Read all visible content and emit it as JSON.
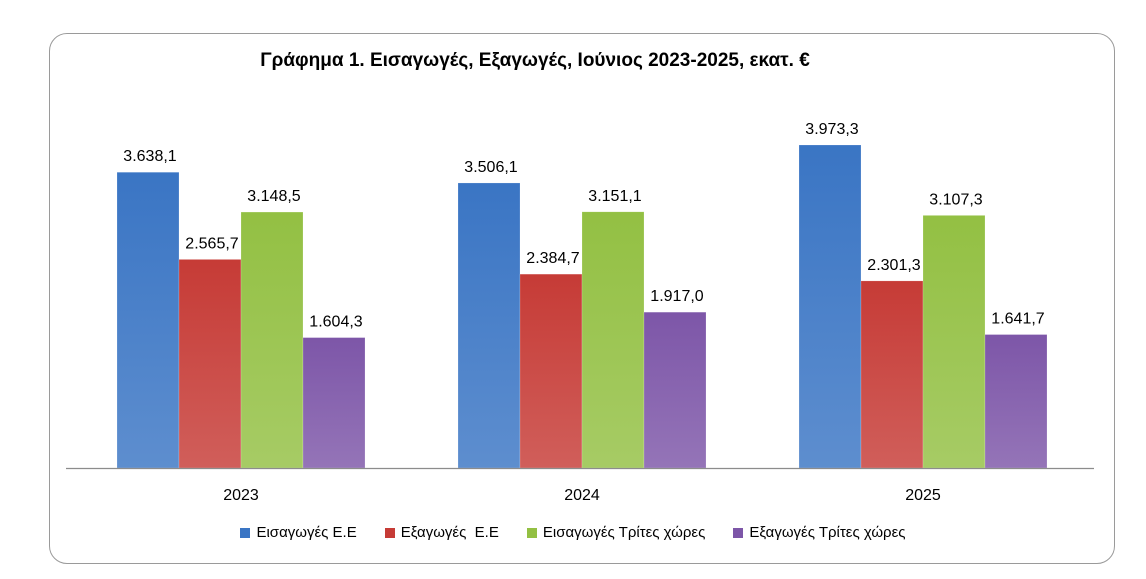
{
  "chart_data": {
    "type": "bar",
    "title": "Γράφημα 1. Εισαγωγές, Εξαγωγές, Ιούνιος 2023-2025, εκατ. €",
    "categories": [
      "2023",
      "2024",
      "2025"
    ],
    "series": [
      {
        "name": "Εισαγωγές Ε.Ε",
        "values": [
          3638.1,
          3506.1,
          3973.3
        ],
        "labels": [
          "3.638,1",
          "3.506,1",
          "3.973,3"
        ],
        "color": "#3a75c4"
      },
      {
        "name": "Εξαγωγές  Ε.Ε",
        "values": [
          2565.7,
          2384.7,
          2301.3
        ],
        "labels": [
          "2.565,7",
          "2.384,7",
          "2.301,3"
        ],
        "color": "#c63b36"
      },
      {
        "name": "Εισαγωγές Τρίτες χώρες",
        "values": [
          3148.5,
          3151.1,
          3107.3
        ],
        "labels": [
          "3.148,5",
          "3.151,1",
          "3.107,3"
        ],
        "color": "#93c043"
      },
      {
        "name": "Εξαγωγές Τρίτες χώρες",
        "values": [
          1604.3,
          1917.0,
          1641.7
        ],
        "labels": [
          "1.604,3",
          "1.917,0",
          "1.641,7"
        ],
        "color": "#7d56a8"
      }
    ],
    "ylim": [
      0,
      4900
    ],
    "grid": false,
    "legend_position": "bottom"
  }
}
